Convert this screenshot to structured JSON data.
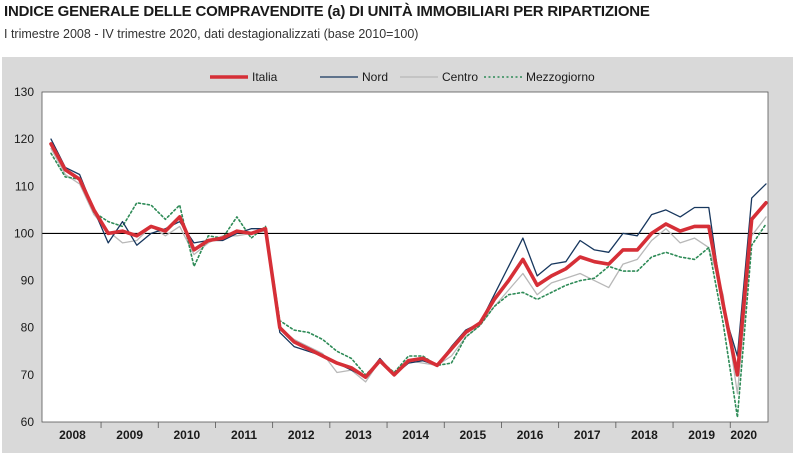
{
  "header": {
    "title": "INDICE GENERALE DELLE COMPRAVENDITE (a) DI UNITÀ IMMOBILIARI PER RIPARTIZIONE",
    "subtitle": "I trimestre 2008 - IV trimestre 2020, dati destagionalizzati (base 2010=100)"
  },
  "chart_data": {
    "type": "line",
    "title": "INDICE GENERALE DELLE COMPRAVENDITE (a) DI UNITÀ IMMOBILIARI PER RIPARTIZIONE",
    "subtitle": "I trimestre 2008 - IV trimestre 2020, dati destagionalizzati (base 2010=100)",
    "xlabel": "",
    "ylabel": "",
    "ylim": [
      60,
      130
    ],
    "yticks": [
      60,
      70,
      80,
      90,
      100,
      110,
      120,
      130
    ],
    "year_labels": [
      "2008",
      "2009",
      "2010",
      "2011",
      "2012",
      "2013",
      "2014",
      "2015",
      "2016",
      "2017",
      "2018",
      "2019",
      "2020"
    ],
    "reference_line": 100,
    "legend_position": "top",
    "series": [
      {
        "name": "Italia",
        "color": "#d62f37",
        "style": "solid-thick",
        "values": [
          119,
          113.5,
          111.5,
          105,
          100,
          100.5,
          99.5,
          101.5,
          100.5,
          103.5,
          96.5,
          98.5,
          99,
          100.5,
          100,
          101,
          80,
          77,
          75.5,
          74,
          72.5,
          71.5,
          69.5,
          73,
          70,
          73,
          73.5,
          72,
          75.5,
          79,
          81,
          86,
          90,
          94.5,
          89,
          91,
          92.5,
          95,
          94,
          93.5,
          96.5,
          96.5,
          100,
          102,
          100.5,
          101.5,
          101.5,
          85,
          70,
          103,
          106.5
        ]
      },
      {
        "name": "Nord",
        "color": "#17375e",
        "style": "solid-thin",
        "values": [
          120,
          114,
          112.5,
          105,
          98,
          102.5,
          97.5,
          100,
          101,
          102.5,
          98,
          98.5,
          98.5,
          100,
          101,
          101,
          79,
          76,
          75,
          74,
          72.5,
          71,
          69.5,
          73.5,
          70,
          72.5,
          73,
          72,
          76,
          79.5,
          81,
          87,
          93,
          99,
          91,
          93.5,
          94,
          98.5,
          96.5,
          96,
          100,
          99.5,
          104,
          105,
          103.5,
          105.5,
          105.5,
          84,
          74,
          107.5,
          110.5
        ]
      },
      {
        "name": "Centro",
        "color": "#b8b8b8",
        "style": "solid-thin",
        "values": [
          118,
          112.5,
          110.5,
          104,
          100.5,
          98,
          98.5,
          101.5,
          99.5,
          101.5,
          95.5,
          98,
          99.5,
          99.5,
          100,
          100.5,
          80,
          77.5,
          76,
          74.5,
          70.5,
          71,
          68.5,
          73,
          70,
          73,
          72.5,
          72,
          74,
          78,
          80.5,
          84.5,
          88,
          91.5,
          87,
          89.5,
          90.5,
          91.5,
          90,
          88.5,
          93.5,
          94.5,
          98.5,
          101,
          98,
          99,
          97,
          87,
          66,
          99.5,
          103.5
        ]
      },
      {
        "name": "Mezzogiorno",
        "color": "#2e8b57",
        "style": "dotted",
        "values": [
          117,
          112,
          111.5,
          104.5,
          102.5,
          101.5,
          106.5,
          106,
          103,
          106,
          93,
          99.5,
          99,
          103.5,
          99,
          101.5,
          81.5,
          79.5,
          79,
          77.5,
          75,
          73.5,
          70,
          73,
          70.5,
          74,
          74,
          72,
          72.5,
          78,
          80.5,
          84.5,
          87,
          87.5,
          86,
          87.5,
          89,
          90,
          90.5,
          93,
          92,
          92,
          95,
          96,
          95,
          94.5,
          97,
          81,
          61,
          97.5,
          102
        ]
      }
    ]
  }
}
